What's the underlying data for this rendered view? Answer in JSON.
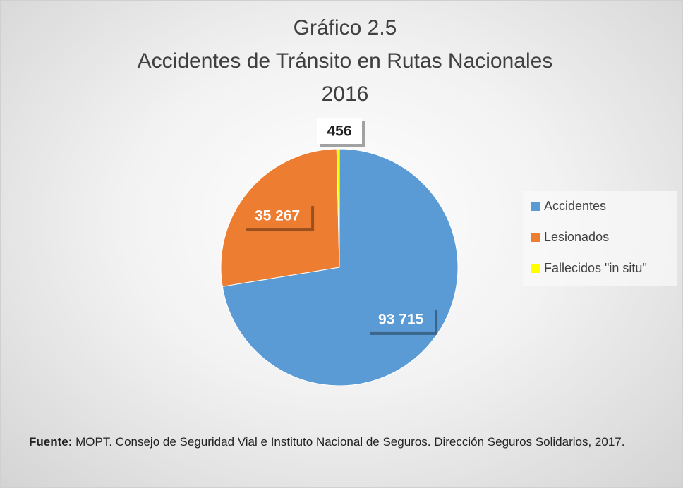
{
  "chart_data": {
    "type": "pie",
    "title": [
      "Gráfico 2.5",
      "Accidentes de Tránsito en Rutas Nacionales",
      "2016"
    ],
    "categories": [
      "Accidentes",
      "Lesionados",
      "Fallecidos \"in situ\""
    ],
    "values": [
      93715,
      35267,
      456
    ],
    "value_labels": [
      "93 715",
      "35 267",
      "456"
    ],
    "colors": [
      "#5b9bd5",
      "#ed7d31",
      "#ffff00"
    ],
    "legend": "right",
    "source": {
      "label": "Fuente:",
      "text": "MOPT. Consejo de Seguridad Vial e Instituto Nacional de Seguros. Dirección Seguros Solidarios, 2017."
    }
  }
}
